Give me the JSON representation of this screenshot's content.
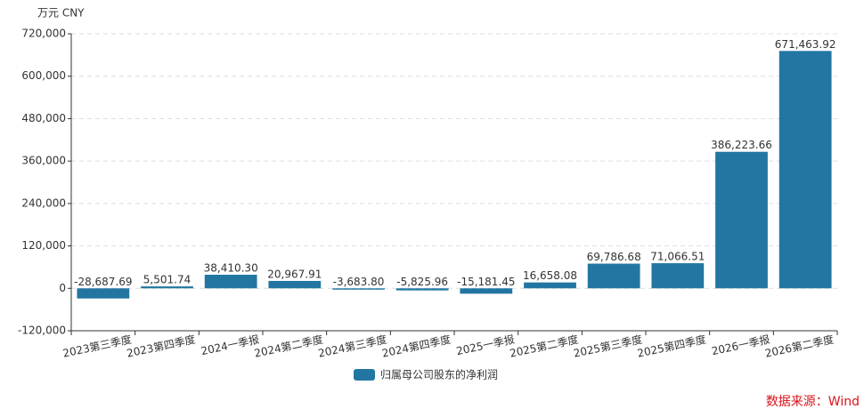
{
  "chart_data": {
    "type": "bar",
    "unit_label": "万元  CNY",
    "source": "数据来源：Wind",
    "categories": [
      "2023第三季度",
      "2023第四季度",
      "2024一季报",
      "2024第二季度",
      "2024第三季度",
      "2024第四季度",
      "2025一季报",
      "2025第二季度",
      "2025第三季度",
      "2025第四季度",
      "2026一季报",
      "2026第二季度"
    ],
    "series": [
      {
        "name": "归属母公司股东的净利润",
        "color": "#2376a2",
        "values": [
          -28687.69,
          5501.74,
          38410.3,
          20967.91,
          -3683.8,
          -5825.96,
          -15181.45,
          16658.08,
          69786.68,
          71066.51,
          386223.66,
          671463.92
        ],
        "value_labels": [
          "-28,687.69",
          "5,501.74",
          "38,410.30",
          "20,967.91",
          "-3,683.80",
          "-5,825.96",
          "-15,181.45",
          "16,658.08",
          "69,786.68",
          "71,066.51",
          "386,223.66",
          "671,463.92"
        ]
      }
    ],
    "ylim": [
      -120000,
      720000
    ],
    "yticks": [
      {
        "value": -120000,
        "label": "-120,000"
      },
      0,
      {
        "value": 120000,
        "label": "120,000"
      },
      {
        "value": 240000,
        "label": "240,000"
      },
      {
        "value": 360000,
        "label": "360,000"
      },
      {
        "value": 480000,
        "label": "480,000"
      },
      {
        "value": 600000,
        "label": "600,000"
      },
      {
        "value": 720000,
        "label": "720,000"
      }
    ],
    "grid": true
  }
}
